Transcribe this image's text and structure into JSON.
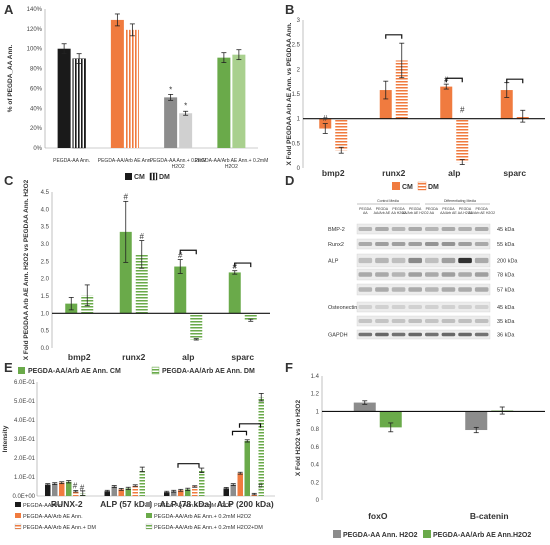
{
  "colors": {
    "black": "#1a1a1a",
    "orange": "#f07b3f",
    "orange_light": "#f9b48d",
    "gray": "#8c8c8c",
    "gray_light": "#c8c8c8",
    "green": "#6aaa4a",
    "green_light": "#a9d08e"
  },
  "chart_data": [
    {
      "panel": "A",
      "type": "bar",
      "ylabel": "% of PEGDA_AA Ann.",
      "ylim": [
        0,
        140
      ],
      "yticks": [
        "0%",
        "20%",
        "40%",
        "60%",
        "80%",
        "100%",
        "120%",
        "140%"
      ],
      "categories": [
        "PEGDA-AA Ann.",
        "PEGDA-AA/Arb AE Ann.",
        "PEGDA-AA Ann.+ 0.2mM H2O2",
        "PEGDA-AA/Arb AE Ann.+ 0.2mM H2O2"
      ],
      "series": [
        {
          "name": "CM",
          "values": [
            100,
            129,
            51,
            91
          ],
          "errors": [
            5,
            6,
            3,
            5
          ]
        },
        {
          "name": "DM",
          "values": [
            90,
            119,
            35,
            94
          ],
          "errors": [
            5,
            6,
            2,
            5
          ]
        }
      ],
      "annotations": [
        "*",
        "*"
      ],
      "legend": "bottom"
    },
    {
      "panel": "B",
      "type": "bar",
      "ylabel": "X Fold PEGDAA Arb AE Ann. vs PEGDAA Ann.",
      "ylim": [
        0,
        3
      ],
      "baseline": 1,
      "yticks": [
        "0",
        "0.5",
        "1",
        "1.5",
        "2",
        "2.5",
        "3"
      ],
      "categories": [
        "bmp2",
        "runx2",
        "alp",
        "sparc"
      ],
      "series": [
        {
          "name": "CM",
          "values": [
            0.8,
            1.58,
            1.65,
            1.58
          ],
          "errors": [
            0.1,
            0.18,
            0.05,
            0.15
          ]
        },
        {
          "name": "DM",
          "values": [
            0.36,
            2.18,
            0.12,
            1.05
          ],
          "errors": [
            0.06,
            0.35,
            0.05,
            0.12
          ]
        }
      ],
      "annotations": [
        "#",
        "#",
        "#"
      ],
      "legend": "bottom"
    },
    {
      "panel": "C",
      "type": "bar",
      "ylabel": "X Fold PEGDAA Arb AE Ann. H2O2 vs PEGDAA Ann. H2O2",
      "ylim": [
        0,
        4.5
      ],
      "baseline": 1,
      "yticks": [
        "0.0",
        "0.5",
        "1.0",
        "1.5",
        "2.0",
        "2.5",
        "3.0",
        "3.5",
        "4.0",
        "4.5"
      ],
      "categories": [
        "bmp2",
        "runx2",
        "alp",
        "sparc"
      ],
      "series": [
        {
          "name": "PEGDA-AA/Arb AE Ann. CM",
          "values": [
            1.28,
            3.35,
            2.35,
            2.18
          ],
          "errors": [
            0.18,
            0.88,
            0.2,
            0.05
          ]
        },
        {
          "name": "PEGDA-AA/Arb AE Ann. DM",
          "values": [
            1.52,
            2.7,
            0.25,
            0.8
          ],
          "errors": [
            0.3,
            0.4,
            0.02,
            0.03
          ]
        }
      ],
      "annotations": [
        "#",
        "#",
        "#",
        "#"
      ],
      "legend": "bottom"
    },
    {
      "panel": "E",
      "type": "bar",
      "ylabel": "Intensity",
      "ylim": [
        0,
        0.6
      ],
      "yticks": [
        "0.0E+00",
        "1.0E-01",
        "2.0E-01",
        "3.0E-01",
        "4.0E-01",
        "5.0E-01",
        "6.0E-01"
      ],
      "categories": [
        "RUNX-2",
        "ALP (57 kDa)",
        "ALP (78 kDa)",
        "ALP (200 kDa)"
      ],
      "series": [
        {
          "name": "PEGDA-AA Ann.",
          "values": [
            0.06,
            0.025,
            0.02,
            0.04
          ]
        },
        {
          "name": "PEGDA-AA Ann.+ 0.2mM H2O2",
          "values": [
            0.065,
            0.05,
            0.025,
            0.06
          ]
        },
        {
          "name": "PEGDA-AA/Arb AE Ann.",
          "values": [
            0.07,
            0.035,
            0.03,
            0.12
          ]
        },
        {
          "name": "PEGDA-AA/Arb AE Ann.+ 0.2mM H2O2",
          "values": [
            0.075,
            0.04,
            0.035,
            0.29
          ]
        },
        {
          "name": "PEGDA-AA/Arb AE Ann.+ DM",
          "values": [
            0.025,
            0.055,
            0.05,
            0.01
          ]
        },
        {
          "name": "PEGDA-AA/Arb AE Ann.+ 0.2mM H2O2+DM",
          "values": [
            0.015,
            0.14,
            0.135,
            0.52
          ]
        }
      ],
      "annotations": [
        "#",
        "#",
        "#"
      ],
      "legend": "bottom"
    },
    {
      "panel": "F",
      "type": "bar",
      "ylabel": "X Fold H2O2 vs no H2O2",
      "ylim": [
        0,
        1.4
      ],
      "baseline": 1,
      "yticks": [
        "0",
        "0.2",
        "0.4",
        "0.6",
        "0.8",
        "1",
        "1.2",
        "1.4"
      ],
      "categories": [
        "foxO",
        "B-catenin"
      ],
      "series": [
        {
          "name": "PEGDA-AA Ann. H2O2",
          "values": [
            1.1,
            0.79
          ],
          "errors": [
            0.02,
            0.03
          ]
        },
        {
          "name": "PEGDA-AA/Arb AE Ann.H2O2",
          "values": [
            0.82,
            1.01
          ],
          "errors": [
            0.05,
            0.04
          ]
        }
      ],
      "legend": "bottom"
    }
  ],
  "blot": {
    "header_left": "Control Media",
    "header_right": "Differentiating Media",
    "lanes": [
      "PEGDA AA",
      "PEGDA AA/Arb AE",
      "PEGDA AA H2O2",
      "PEGDA AA/Arb AE H2O2",
      "PEGDA AA",
      "PEGDA AA/Arb AE",
      "PEGDA AA H2O2",
      "PEGDA AA/Arb AE H2O2"
    ],
    "rows": [
      {
        "label": "BMP-2",
        "kda": "45 kDa"
      },
      {
        "label": "Runx2",
        "kda": "55 kDa"
      },
      {
        "label": "ALP",
        "kda": "200 kDa"
      },
      {
        "label": "",
        "kda": "78 kDa"
      },
      {
        "label": "",
        "kda": "57 kDa"
      },
      {
        "label": "Osteonectin",
        "kda": "45 kDa"
      },
      {
        "label": "",
        "kda": "35 kDa"
      },
      {
        "label": "GAPDH",
        "kda": "36 kDa"
      }
    ]
  },
  "panel_labels": [
    "A",
    "B",
    "C",
    "D",
    "E",
    "F"
  ]
}
